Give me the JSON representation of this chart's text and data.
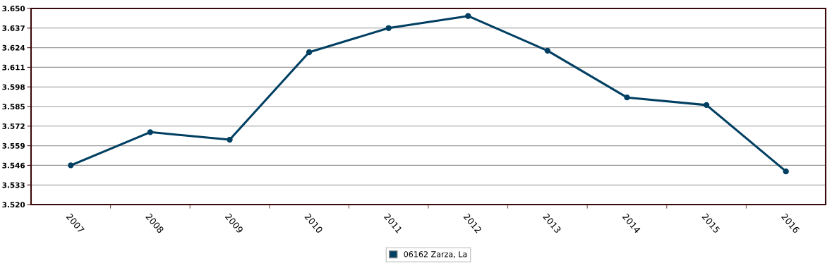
{
  "chart_data": {
    "type": "line",
    "categories": [
      "2007",
      "2008",
      "2009",
      "2010",
      "2011",
      "2012",
      "2013",
      "2014",
      "2015",
      "2016"
    ],
    "series": [
      {
        "name": "06162 Zarza, La",
        "color": "#003f62",
        "values": [
          3546,
          3568,
          3563,
          3621,
          3637,
          3645,
          3622,
          3591,
          3586,
          3542
        ]
      }
    ],
    "ylim": [
      3520,
      3650
    ],
    "yticks": [
      {
        "value": 3520,
        "label": "3.520"
      },
      {
        "value": 3533,
        "label": "3.533"
      },
      {
        "value": 3546,
        "label": "3.546"
      },
      {
        "value": 3559,
        "label": "3.559"
      },
      {
        "value": 3572,
        "label": "3.572"
      },
      {
        "value": 3585,
        "label": "3.585"
      },
      {
        "value": 3598,
        "label": "3.598"
      },
      {
        "value": 3611,
        "label": "3.611"
      },
      {
        "value": 3624,
        "label": "3.624"
      },
      {
        "value": 3637,
        "label": "3.637"
      },
      {
        "value": 3650,
        "label": "3.650"
      }
    ],
    "grid": "y",
    "legend": "bottom",
    "marker": "circle",
    "line_style": "solid"
  }
}
